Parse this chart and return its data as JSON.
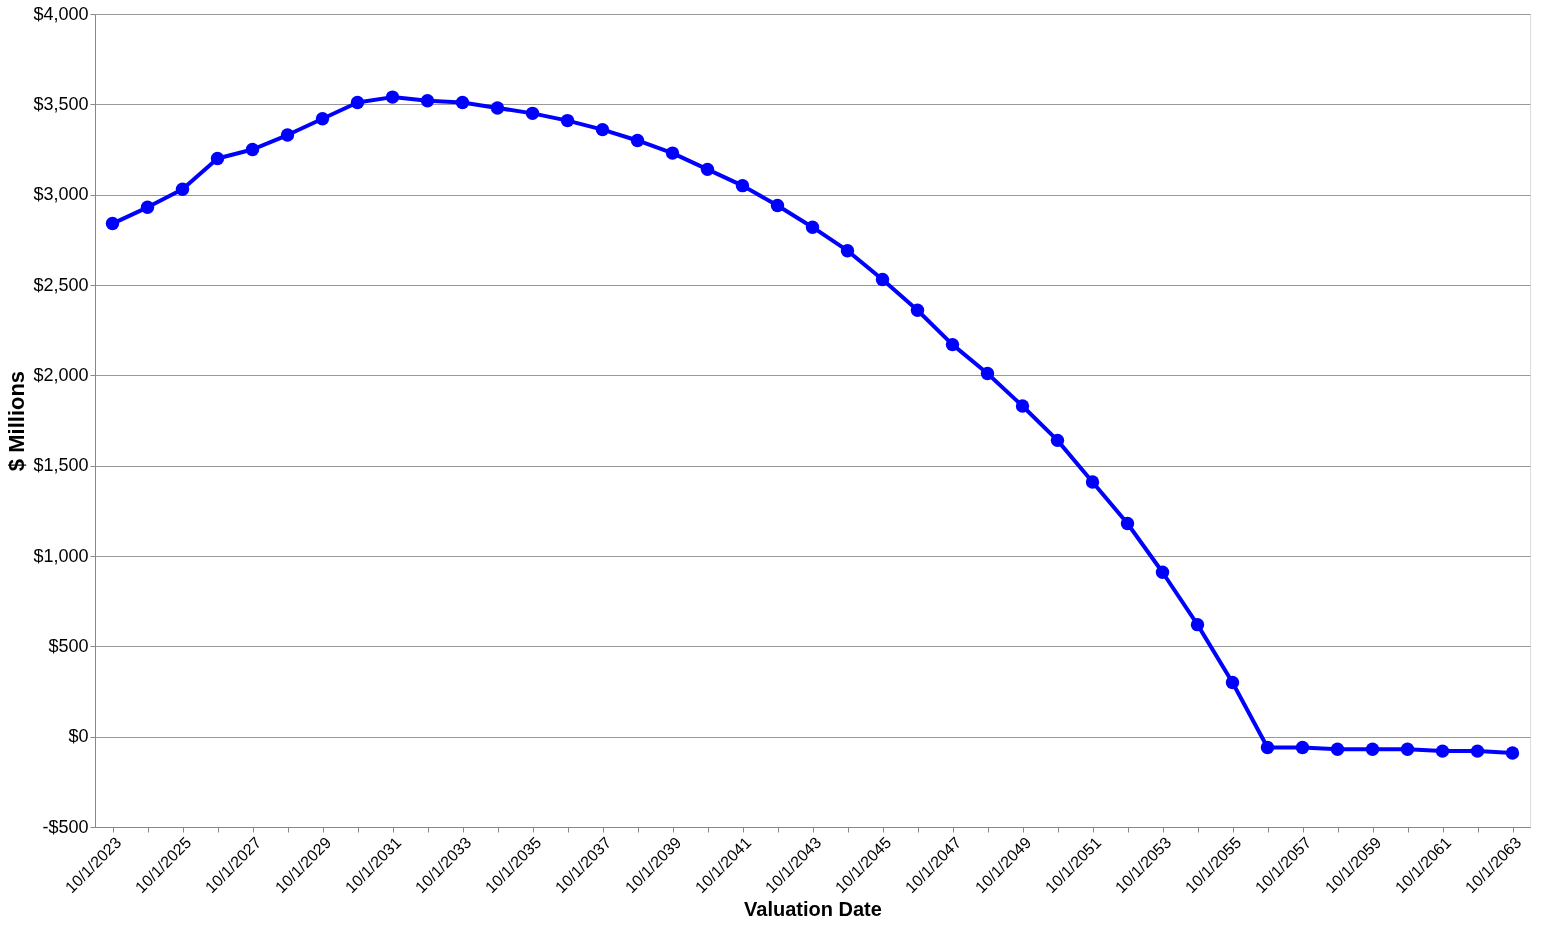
{
  "chart_data": {
    "type": "line",
    "xlabel": "Valuation Date",
    "ylabel": "$ Millions",
    "categories": [
      "10/1/2023",
      null,
      "10/1/2025",
      null,
      "10/1/2027",
      null,
      "10/1/2029",
      null,
      "10/1/2031",
      null,
      "10/1/2033",
      null,
      "10/1/2035",
      null,
      "10/1/2037",
      null,
      "10/1/2039",
      null,
      "10/1/2041",
      null,
      "10/1/2043",
      null,
      "10/1/2045",
      null,
      "10/1/2047",
      null,
      "10/1/2049",
      null,
      "10/1/2051",
      null,
      "10/1/2053",
      null,
      "10/1/2055",
      null,
      "10/1/2057",
      null,
      "10/1/2059",
      null,
      "10/1/2061",
      null,
      "10/1/2063"
    ],
    "series": [
      {
        "color": "#0000ff",
        "values": [
          2840,
          2930,
          3030,
          3200,
          3250,
          3330,
          3420,
          3510,
          3540,
          3520,
          3510,
          3480,
          3450,
          3410,
          3360,
          3300,
          3230,
          3140,
          3050,
          2940,
          2820,
          2690,
          2530,
          2360,
          2170,
          2010,
          1830,
          1640,
          1410,
          1180,
          910,
          620,
          300,
          -60,
          -60,
          -70,
          -70,
          -70,
          -80,
          -80,
          -90
        ]
      }
    ],
    "ylim": [
      -500,
      4000
    ],
    "yticks": [
      {
        "value": -500,
        "label": "-$500"
      },
      {
        "value": 0,
        "label": "$0"
      },
      {
        "value": 500,
        "label": "$500"
      },
      {
        "value": 1000,
        "label": "$1,000"
      },
      {
        "value": 1500,
        "label": "$1,500"
      },
      {
        "value": 2000,
        "label": "$2,000"
      },
      {
        "value": 2500,
        "label": "$2,500"
      },
      {
        "value": 3000,
        "label": "$3,000"
      },
      {
        "value": 3500,
        "label": "$3,500"
      },
      {
        "value": 4000,
        "label": "$4,000"
      }
    ],
    "grid": "y",
    "marker": "circle",
    "line_style": "solid",
    "legend": false
  }
}
